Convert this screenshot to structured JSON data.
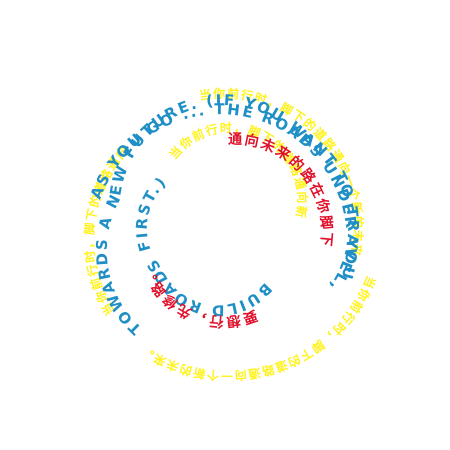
{
  "colors": {
    "background": "#ffffff",
    "blue": "#1f8fc6",
    "yellow": "#fff21e",
    "red": "#e0102a"
  },
  "spiral": {
    "en_outer": "AS YOU GO ... THE ROADS UNDER YOUR FEET",
    "en_middle": "TOWARDS A NEW FUTURE. (IF YOU WANT TO TRAVEL,",
    "en_inner": "BUILD ROADS FIRST.)",
    "zh_red_outer": "通向未来的路在你脚下",
    "zh_red_inner": "要想行，先修路。",
    "zh_yellow_outer": "当你前行时，脚下的道路通向一个新的未来。",
    "zh_yellow_inner": "当你前行时，脚下的道路通向新未来。"
  }
}
